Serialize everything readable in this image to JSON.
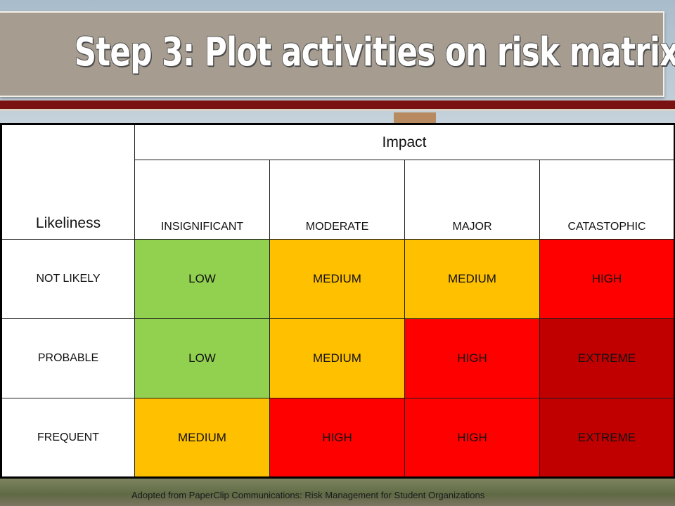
{
  "slide": {
    "title": "Step 3: Plot activities on risk matrix",
    "footnote": "Adopted from PaperClip Communications: Risk Management for Student Organizations"
  },
  "matrix": {
    "row_axis_label": "Likeliness",
    "column_axis_label": "Impact",
    "impact_levels": [
      "INSIGNIFICANT",
      "MODERATE",
      "MAJOR",
      "CATASTOPHIC"
    ],
    "rows": [
      {
        "label": "NOT LIKELY",
        "cells": [
          {
            "text": "LOW",
            "color": "#92d050"
          },
          {
            "text": "MEDIUM",
            "color": "#ffc000"
          },
          {
            "text": "MEDIUM",
            "color": "#ffc000"
          },
          {
            "text": "HIGH",
            "color": "#ff0000"
          }
        ]
      },
      {
        "label": "PROBABLE",
        "cells": [
          {
            "text": "LOW",
            "color": "#92d050"
          },
          {
            "text": "MEDIUM",
            "color": "#ffc000"
          },
          {
            "text": "HIGH",
            "color": "#ff0000"
          },
          {
            "text": "EXTREME",
            "color": "#c00000"
          }
        ]
      },
      {
        "label": "FREQUENT",
        "cells": [
          {
            "text": "MEDIUM",
            "color": "#ffc000"
          },
          {
            "text": "HIGH",
            "color": "#ff0000"
          },
          {
            "text": "HIGH",
            "color": "#ff0000"
          },
          {
            "text": "EXTREME",
            "color": "#c00000"
          }
        ]
      }
    ]
  },
  "colors": {
    "title_bar": "#a69d90",
    "accent_stripe": "#7b1212",
    "low": "#92d050",
    "medium": "#ffc000",
    "high": "#ff0000",
    "extreme": "#c00000"
  }
}
